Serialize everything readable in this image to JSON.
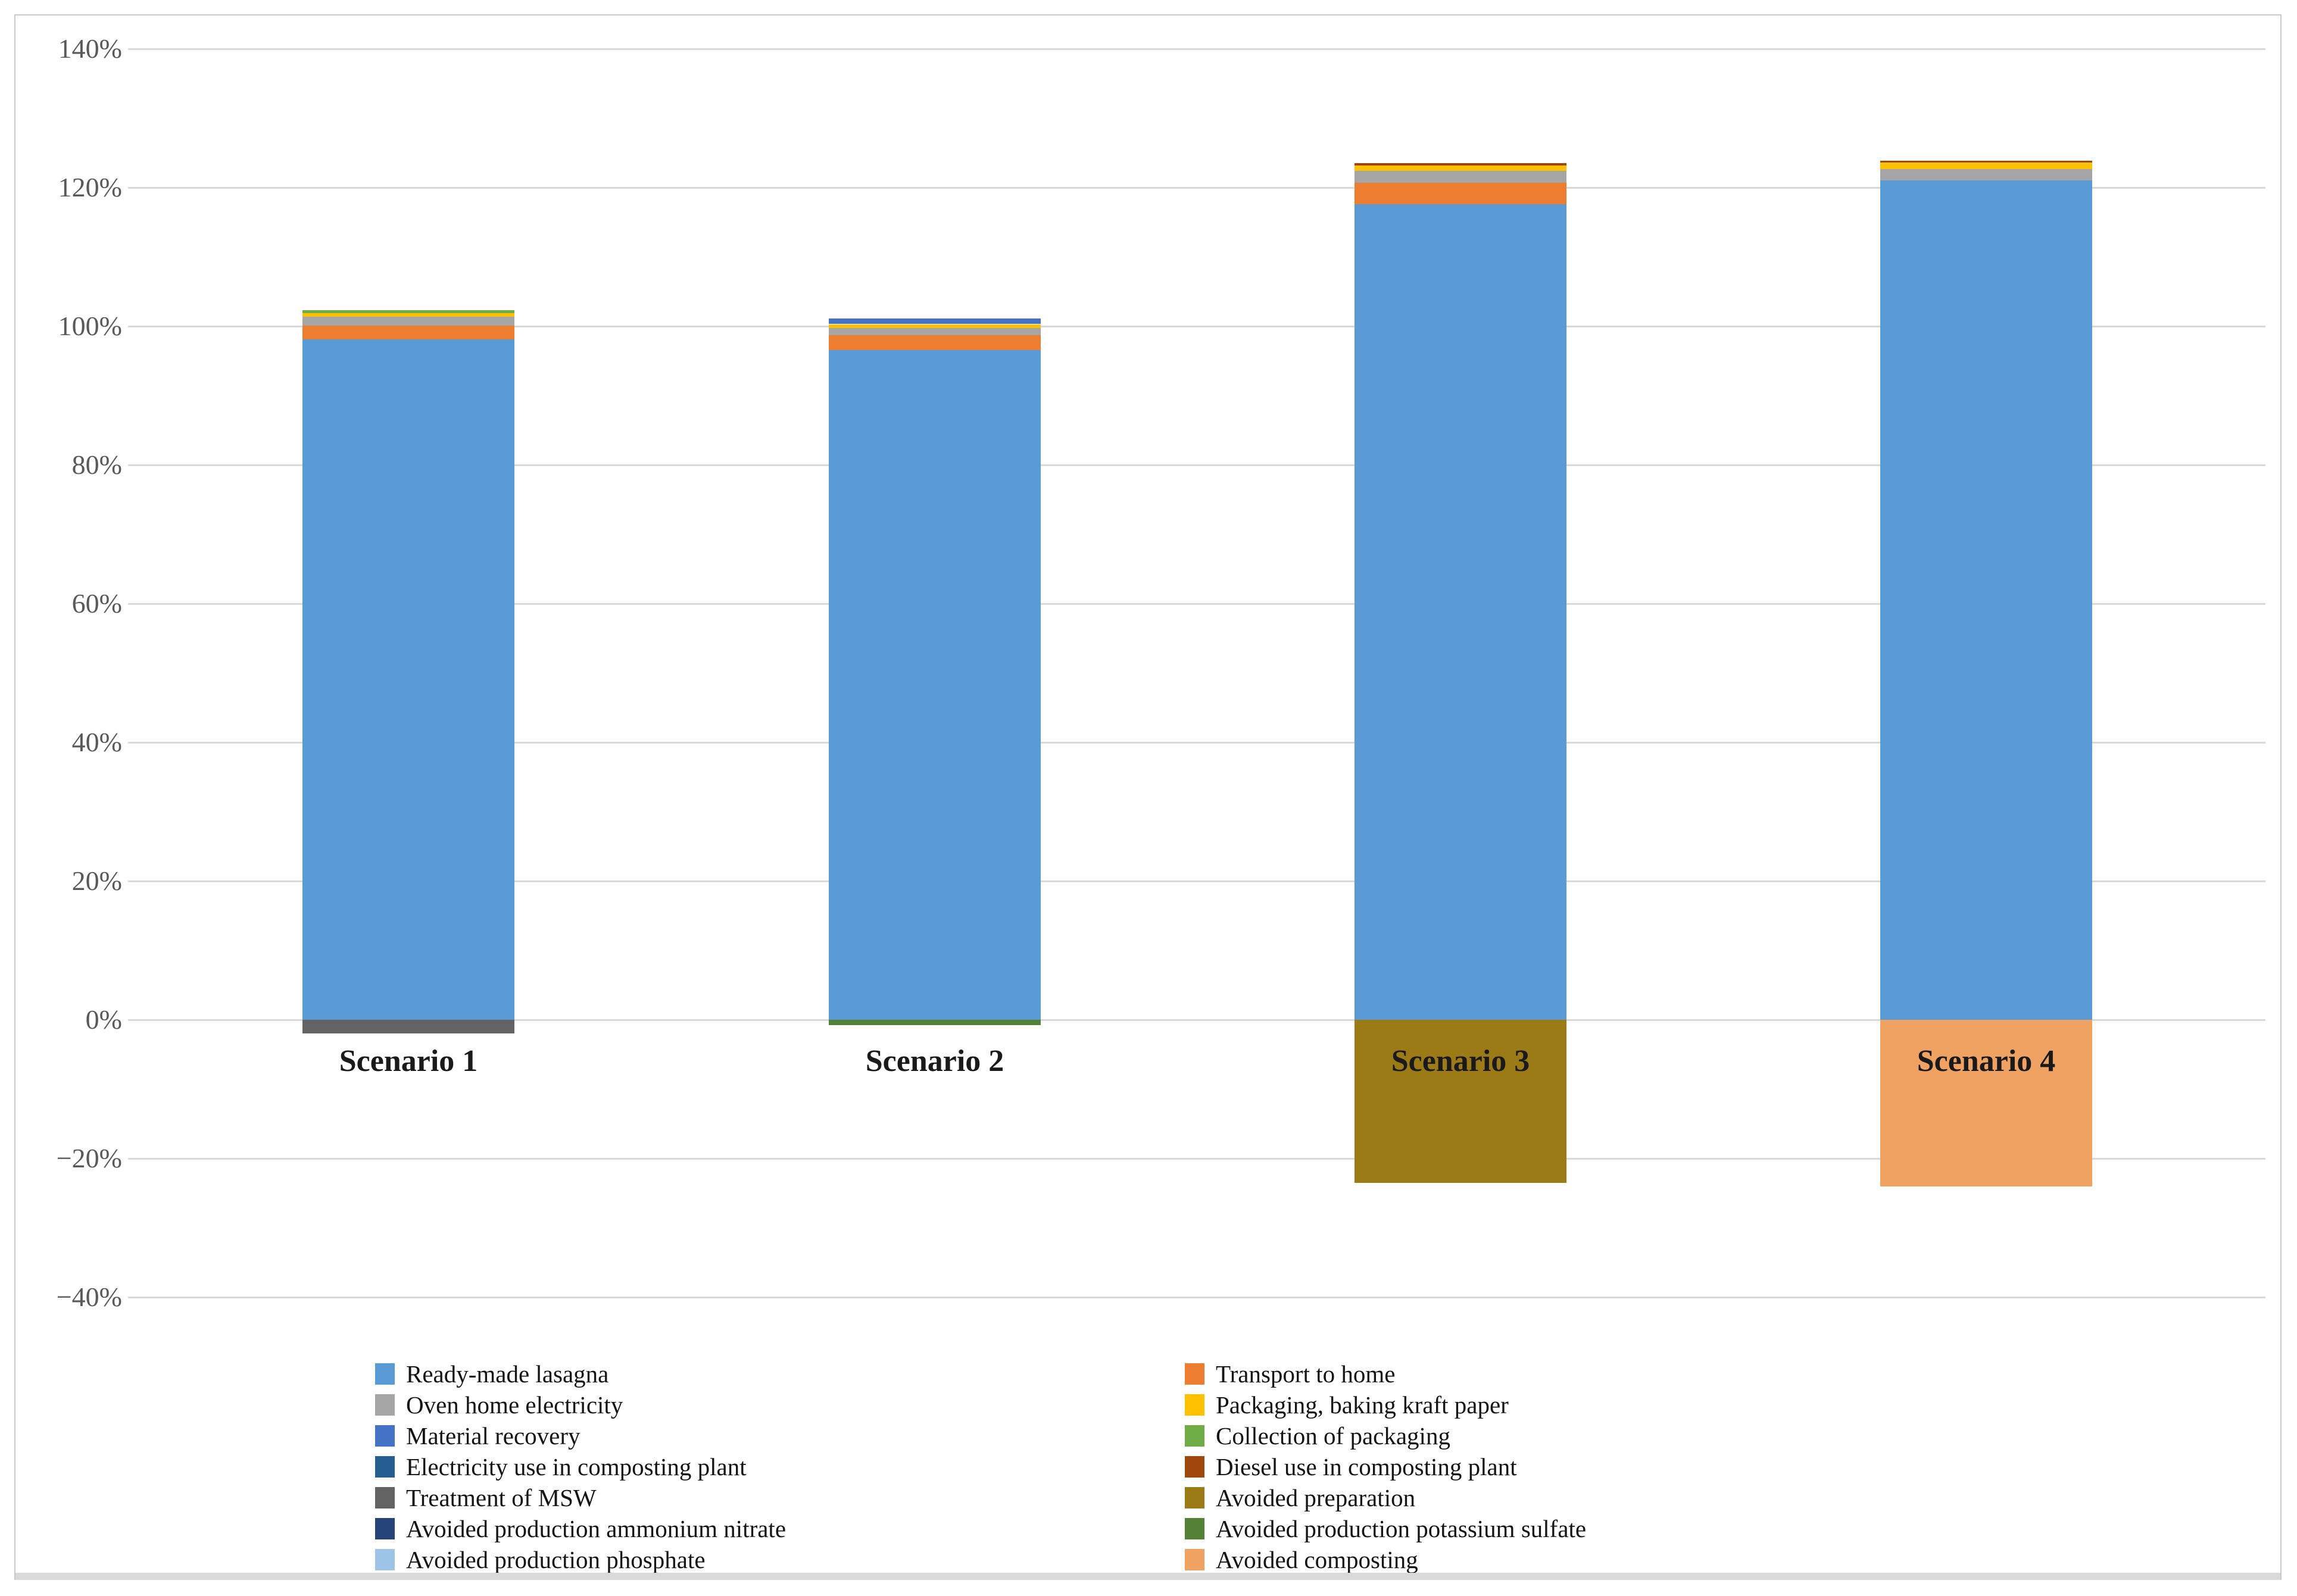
{
  "chart_data": {
    "type": "bar",
    "stacked": true,
    "title": "",
    "xlabel": "",
    "ylabel": "",
    "ylim": [
      -40,
      140
    ],
    "grid": true,
    "legend_position": "bottom",
    "yticks": [
      "140%",
      "120%",
      "100%",
      "80%",
      "60%",
      "40%",
      "20%",
      "0%",
      "−20%",
      "−40%"
    ],
    "ytick_values": [
      140,
      120,
      100,
      80,
      60,
      40,
      20,
      0,
      -20,
      -40
    ],
    "categories": [
      "Scenario 1",
      "Scenario 2",
      "Scenario 3",
      "Scenario 4"
    ],
    "series": [
      {
        "name": "Ready-made lasagna",
        "color": "#5B9BD5",
        "values": [
          98.1,
          96.6,
          117.6,
          121.0
        ]
      },
      {
        "name": "Transport to home",
        "color": "#ED7D31",
        "values": [
          2.0,
          2.1,
          3.1,
          0
        ]
      },
      {
        "name": "Oven home electricity",
        "color": "#A5A5A5",
        "values": [
          1.3,
          1.0,
          1.7,
          1.7
        ]
      },
      {
        "name": "Packaging, baking kraft paper",
        "color": "#FFC000",
        "values": [
          0.5,
          0.6,
          0.8,
          0.9
        ]
      },
      {
        "name": "Material recovery",
        "color": "#4472C4",
        "values": [
          0,
          0.8,
          0,
          0
        ]
      },
      {
        "name": "Collection of packaging",
        "color": "#70AD47",
        "values": [
          0.4,
          0,
          0,
          0
        ]
      },
      {
        "name": "Electricity use in composting plant",
        "color": "#255E91",
        "values": [
          0,
          0,
          0,
          0
        ]
      },
      {
        "name": "Diesel use in composting plant",
        "color": "#9E480E",
        "values": [
          0,
          0,
          0.3,
          0.3
        ]
      },
      {
        "name": "Treatment of MSW",
        "color": "#636363",
        "values": [
          -2.0,
          0,
          0,
          0
        ]
      },
      {
        "name": "Avoided preparation",
        "color": "#9C7A15",
        "values": [
          0,
          0,
          -23.5,
          0
        ]
      },
      {
        "name": "Avoided production ammonium nitrate",
        "color": "#264478",
        "values": [
          0,
          0,
          0,
          0
        ]
      },
      {
        "name": "Avoided production potassium sulfate",
        "color": "#538135",
        "values": [
          0,
          -0.8,
          0,
          0
        ]
      },
      {
        "name": "Avoided production phosphate",
        "color": "#9DC3E6",
        "values": [
          0,
          0,
          0,
          0
        ]
      },
      {
        "name": "Avoided composting",
        "color": "#F0A263",
        "values": [
          0,
          0,
          0,
          -24.0
        ]
      }
    ]
  },
  "colors": {
    "gridline": "#d9d9d9",
    "axis_text": "#595959",
    "category_text": "#1a1a1a",
    "legend_text": "#141414",
    "border": "#c9c9c9"
  }
}
